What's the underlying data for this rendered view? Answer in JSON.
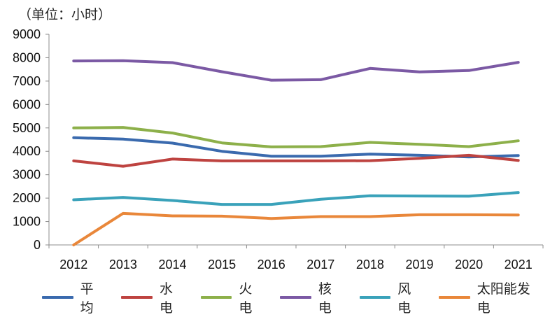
{
  "chart_data": {
    "type": "line",
    "unit_label": "（单位：小时）",
    "categories": [
      "2012",
      "2013",
      "2014",
      "2015",
      "2016",
      "2017",
      "2018",
      "2019",
      "2020",
      "2021"
    ],
    "ylim": [
      0,
      9000
    ],
    "yticks": [
      0,
      1000,
      2000,
      3000,
      4000,
      5000,
      6000,
      7000,
      8000,
      9000
    ],
    "legend_position": "bottom",
    "series": [
      {
        "name": "平均",
        "color": "#3A6AAE",
        "values": [
          4580,
          4520,
          4350,
          4000,
          3790,
          3790,
          3880,
          3830,
          3760,
          3820
        ]
      },
      {
        "name": "水电",
        "color": "#BE4340",
        "values": [
          3590,
          3360,
          3670,
          3590,
          3590,
          3590,
          3600,
          3700,
          3830,
          3610
        ]
      },
      {
        "name": "火电",
        "color": "#8DB04A",
        "values": [
          5000,
          5020,
          4780,
          4360,
          4190,
          4200,
          4380,
          4300,
          4200,
          4450
        ]
      },
      {
        "name": "核电",
        "color": "#7B59A4",
        "values": [
          7860,
          7870,
          7790,
          7400,
          7040,
          7060,
          7540,
          7390,
          7450,
          7800
        ]
      },
      {
        "name": "风电",
        "color": "#3AA2BA",
        "values": [
          1930,
          2030,
          1900,
          1730,
          1730,
          1950,
          2100,
          2090,
          2080,
          2240
        ]
      },
      {
        "name": "太阳能发电",
        "color": "#E9873A",
        "values": [
          0,
          1350,
          1240,
          1230,
          1130,
          1210,
          1210,
          1290,
          1290,
          1280
        ]
      }
    ]
  }
}
